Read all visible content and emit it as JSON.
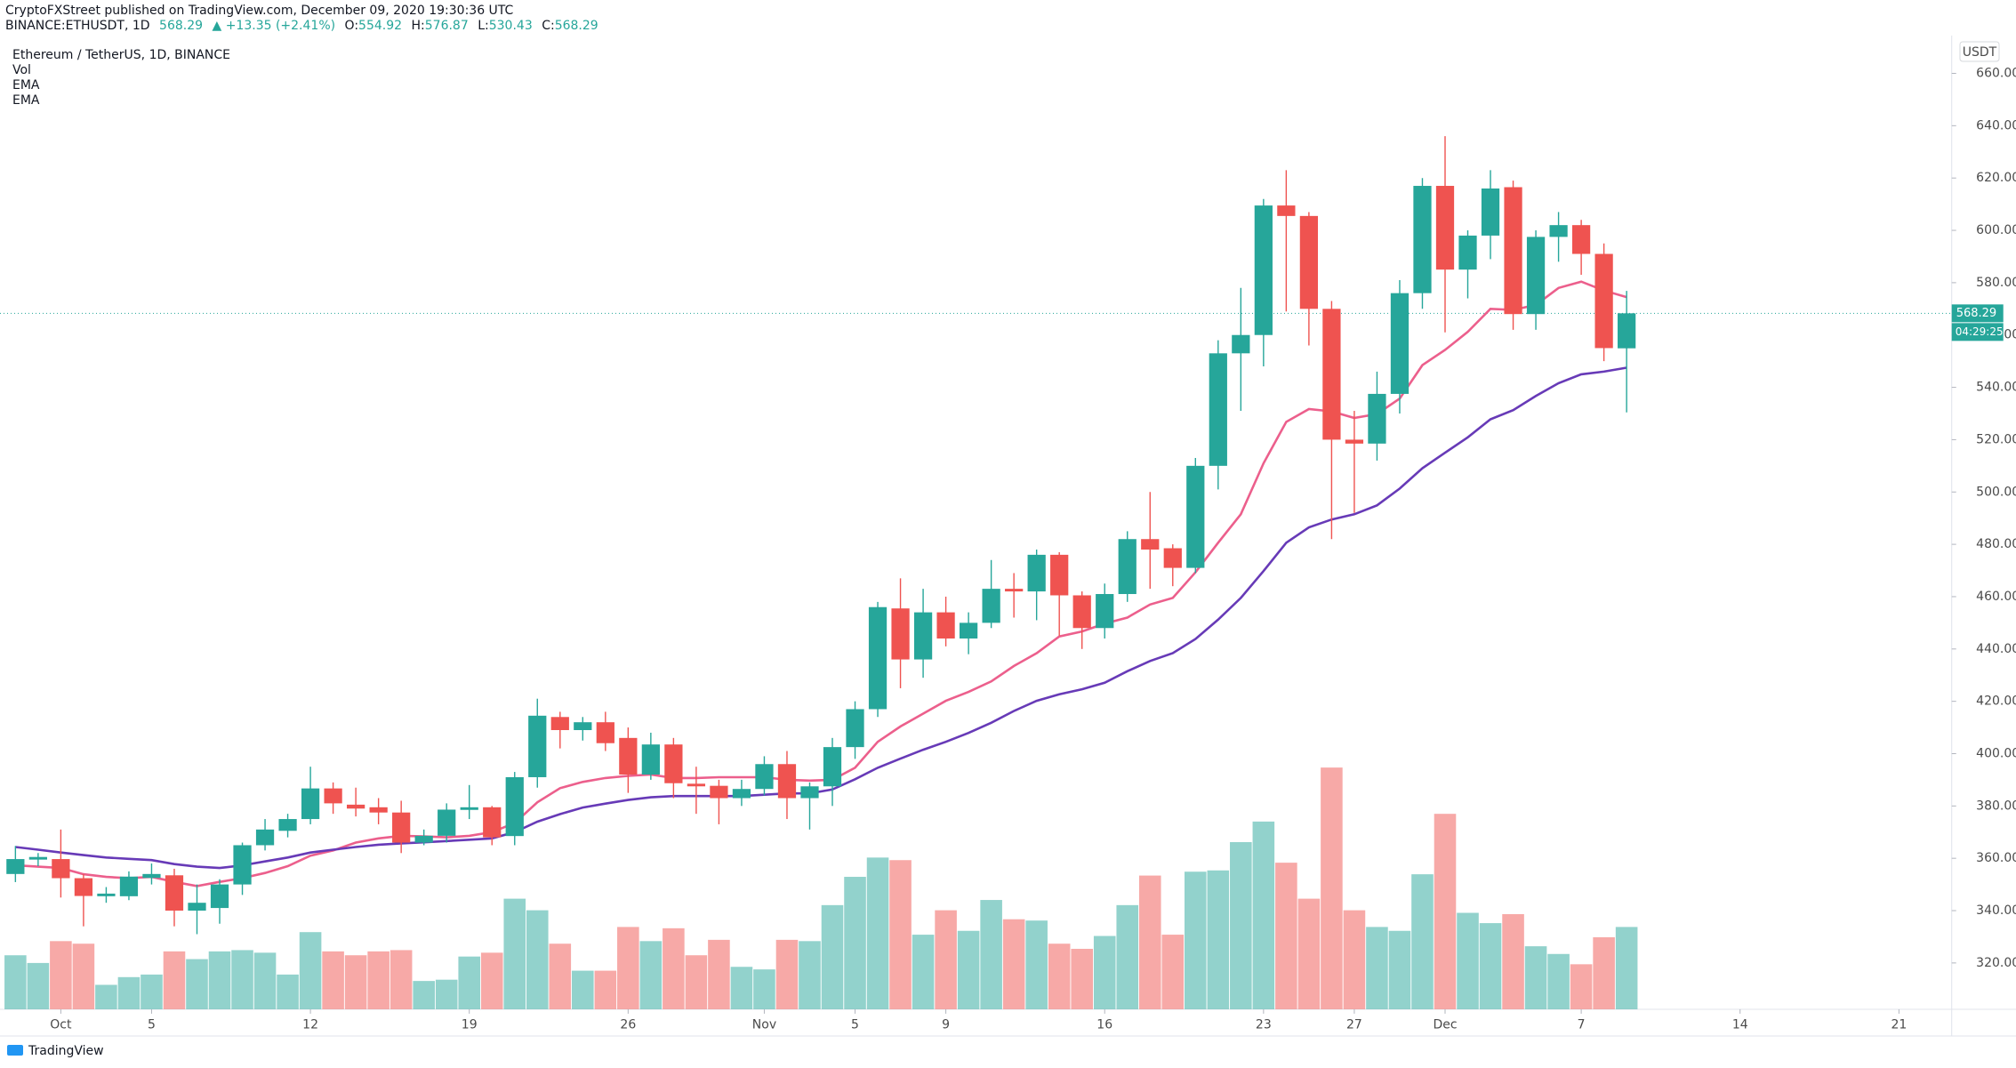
{
  "header": {
    "published": "CryptoFXStreet published on TradingView.com, December 09, 2020 19:30:36 UTC",
    "symbol": "BINANCE:ETHUSDT, 1D",
    "change": "▲ +13.35 (+2.41%)",
    "ohlc_labels": [
      "O:",
      "H:",
      "L:",
      "C:"
    ]
  },
  "chart_data": {
    "type": "candlestick",
    "title": "Ethereum / TetherUS, 1D, BINANCE",
    "volume_name": "Vol",
    "y_unit": "USDT",
    "countdown": "04:29:25",
    "up_color": "#26a69a",
    "down_color": "#ef5350",
    "grid": false,
    "x": [
      "Sep 29",
      "Sep 30",
      "Oct 1",
      "Oct 2",
      "Oct 3",
      "Oct 4",
      "Oct 5",
      "Oct 6",
      "Oct 7",
      "Oct 8",
      "Oct 9",
      "Oct 10",
      "Oct 11",
      "Oct 12",
      "Oct 13",
      "Oct 14",
      "Oct 15",
      "Oct 16",
      "Oct 17",
      "Oct 18",
      "Oct 19",
      "Oct 20",
      "Oct 21",
      "Oct 22",
      "Oct 23",
      "Oct 24",
      "Oct 25",
      "Oct 26",
      "Oct 27",
      "Oct 28",
      "Oct 29",
      "Oct 30",
      "Oct 31",
      "Nov 1",
      "Nov 2",
      "Nov 3",
      "Nov 4",
      "Nov 5",
      "Nov 6",
      "Nov 7",
      "Nov 8",
      "Nov 9",
      "Nov 10",
      "Nov 11",
      "Nov 12",
      "Nov 13",
      "Nov 14",
      "Nov 15",
      "Nov 16",
      "Nov 17",
      "Nov 18",
      "Nov 19",
      "Nov 20",
      "Nov 21",
      "Nov 22",
      "Nov 23",
      "Nov 24",
      "Nov 25",
      "Nov 26",
      "Nov 27",
      "Nov 28",
      "Nov 29",
      "Nov 30",
      "Dec 1",
      "Dec 2",
      "Dec 3",
      "Dec 4",
      "Dec 5",
      "Dec 6",
      "Dec 7",
      "Dec 8",
      "Dec 9"
    ],
    "open": [
      354,
      359.5,
      359.7,
      352.4,
      345.5,
      345.5,
      352.5,
      353.5,
      340,
      341,
      350,
      365,
      370.5,
      375,
      386.7,
      380.5,
      379.5,
      377.5,
      366,
      368.6,
      378.5,
      379.5,
      368.5,
      391,
      414,
      409,
      412,
      406,
      392,
      403.5,
      388.5,
      387.7,
      383,
      386.5,
      396,
      383,
      387.5,
      402.5,
      417,
      455.5,
      436,
      454,
      444,
      450,
      463,
      462,
      476,
      460.5,
      448,
      461,
      482,
      478.5,
      471,
      510,
      553,
      560,
      609.5,
      605.5,
      570,
      520,
      518.5,
      537.5,
      576,
      617,
      585,
      598,
      616.5,
      568,
      597.5,
      602,
      591,
      554.92
    ],
    "high": [
      364.7,
      362,
      371,
      354,
      349,
      355,
      358,
      356,
      350,
      352,
      366,
      375,
      377,
      395,
      389,
      387,
      383,
      382,
      371,
      381,
      388,
      380,
      393,
      421,
      416,
      414,
      416,
      410,
      408,
      406,
      395,
      390,
      390,
      399,
      401,
      389,
      406,
      420,
      458,
      467,
      463,
      460,
      454,
      474,
      469,
      478,
      477,
      462,
      465,
      485,
      500,
      480,
      513,
      558,
      578,
      612,
      623,
      607,
      573,
      531,
      546,
      581,
      620,
      636,
      600,
      623,
      619,
      600,
      607,
      604,
      595,
      576.87
    ],
    "low": [
      350.9,
      357,
      345,
      334,
      343,
      344,
      350,
      334,
      331,
      335,
      346,
      363,
      368,
      373,
      377,
      376,
      373,
      362,
      365,
      366,
      375,
      365,
      365,
      387,
      402,
      405,
      401,
      385,
      390,
      383,
      377,
      373,
      380,
      384,
      375,
      371,
      380,
      398,
      414,
      425,
      429,
      441,
      438,
      448,
      452,
      451,
      445,
      440,
      444,
      458,
      463,
      464,
      469,
      501,
      531,
      548,
      569,
      556,
      482,
      492,
      512,
      530,
      570,
      561,
      574,
      589,
      562,
      562,
      588,
      583,
      550,
      530.43
    ],
    "close": [
      359.7,
      360.5,
      352.4,
      345.6,
      346.5,
      353,
      354,
      340,
      343,
      350,
      365,
      371,
      375,
      386.7,
      381,
      379,
      377.5,
      366,
      368.6,
      378.6,
      379.5,
      368,
      391,
      414.5,
      409,
      412,
      404,
      392,
      403.5,
      388.7,
      387.5,
      383,
      386.5,
      396,
      383,
      387.5,
      402.5,
      417,
      456,
      436,
      454,
      444,
      450,
      463,
      462,
      476,
      460.5,
      448,
      461,
      482,
      478,
      471,
      510,
      553,
      560,
      609.5,
      605.5,
      570,
      520,
      518.5,
      537.5,
      576,
      617,
      585,
      598,
      616,
      568,
      597.5,
      602,
      591,
      555,
      568.29
    ],
    "volume": [
      42,
      36,
      53,
      51,
      19,
      25,
      27,
      45,
      39,
      45,
      46,
      44,
      27,
      60,
      45,
      42,
      45,
      46,
      22,
      23,
      41,
      44,
      86,
      77,
      51,
      30,
      30,
      64,
      53,
      63,
      42,
      54,
      33,
      31,
      54,
      53,
      81,
      103,
      118,
      116,
      58,
      77,
      61,
      85,
      70,
      69,
      51,
      47,
      57,
      81,
      104,
      58,
      107,
      108,
      130,
      146,
      114,
      86,
      188,
      77,
      64,
      61,
      105,
      152,
      75,
      67,
      74,
      49,
      43,
      35,
      56,
      64
    ],
    "series": [
      {
        "name": "EMA",
        "color": "#ec5f8c",
        "values": [
          357.3,
          356.8,
          356.3,
          353.9,
          352.9,
          352.4,
          352.9,
          351,
          349.4,
          351,
          352.4,
          354.4,
          357,
          361,
          363,
          366,
          367.6,
          368.6,
          368.4,
          368,
          368.6,
          370,
          373.5,
          381.4,
          386.8,
          389.2,
          390.7,
          391.5,
          392,
          390.7,
          390.7,
          391,
          391,
          391,
          390,
          389.7,
          390,
          394.6,
          404.5,
          410.4,
          415.3,
          420.2,
          423.6,
          427.6,
          433.5,
          438.4,
          444.8,
          446.7,
          449.7,
          452,
          457,
          459.5,
          469.3,
          480.6,
          491.5,
          511,
          526.8,
          531.7,
          530.8,
          528.3,
          529.8,
          535.7,
          548.5,
          554.3,
          561.2,
          570,
          569.6,
          571.5,
          578,
          580.4,
          577,
          574.5
        ]
      },
      {
        "name": "EMA",
        "color": "#673ab7",
        "values": [
          364.3,
          363.3,
          362.2,
          361.2,
          360.3,
          359.8,
          359.3,
          357.8,
          356.8,
          356.3,
          357.3,
          358.8,
          360.3,
          362.2,
          363.3,
          364.3,
          365.2,
          365.7,
          366.1,
          366.6,
          367.1,
          367.6,
          370,
          374,
          376.9,
          379.4,
          380.9,
          382.3,
          383.3,
          383.8,
          383.8,
          383.8,
          383.8,
          384.3,
          384.8,
          384.8,
          386.3,
          390.2,
          394.6,
          398.1,
          401.5,
          404.5,
          407.9,
          411.8,
          416.3,
          420.2,
          422.7,
          424.6,
          427.1,
          431.5,
          435.4,
          438.4,
          443.8,
          451.2,
          459.5,
          469.8,
          480.6,
          486.5,
          489.5,
          491.5,
          494.9,
          501.3,
          509.1,
          515,
          520.9,
          527.8,
          531.3,
          536.7,
          541.6,
          545,
          546,
          547.5
        ]
      }
    ],
    "ylim": [
      302.3,
      673.3
    ],
    "yticks": [
      {
        "value": 320,
        "label": "320.00"
      },
      {
        "value": 340,
        "label": "340.00"
      },
      {
        "value": 360,
        "label": "360.00"
      },
      {
        "value": 380,
        "label": "380.00"
      },
      {
        "value": 400,
        "label": "400.00"
      },
      {
        "value": 420,
        "label": "420.00"
      },
      {
        "value": 440,
        "label": "440.00"
      },
      {
        "value": 460,
        "label": "460.00"
      },
      {
        "value": 480,
        "label": "480.00"
      },
      {
        "value": 500,
        "label": "500.00"
      },
      {
        "value": 520,
        "label": "520.00"
      },
      {
        "value": 540,
        "label": "540.00"
      },
      {
        "value": 560,
        "label": "560.00"
      },
      {
        "value": 580,
        "label": "580.00"
      },
      {
        "value": 600,
        "label": "600.00"
      },
      {
        "value": 620,
        "label": "620.00"
      },
      {
        "value": 640,
        "label": "640.00"
      },
      {
        "value": 660,
        "label": "660.00"
      }
    ],
    "xticks": [
      {
        "value": "Oct 1",
        "label": "Oct"
      },
      {
        "value": "Oct 5",
        "label": "5"
      },
      {
        "value": "Oct 12",
        "label": "12"
      },
      {
        "value": "Oct 19",
        "label": "19"
      },
      {
        "value": "Oct 26",
        "label": "26"
      },
      {
        "value": "Nov 1",
        "label": "Nov"
      },
      {
        "value": "Nov 5",
        "label": "5"
      },
      {
        "value": "Nov 9",
        "label": "9"
      },
      {
        "value": "Nov 16",
        "label": "16"
      },
      {
        "value": "Nov 23",
        "label": "23"
      },
      {
        "value": "Nov 27",
        "label": "27"
      },
      {
        "value": "Dec 1",
        "label": "Dec"
      },
      {
        "value": "Dec 7",
        "label": "7"
      },
      {
        "value": "Dec 14",
        "label": "14"
      },
      {
        "value": "Dec 21",
        "label": "21"
      }
    ]
  },
  "footer": {
    "brand": "TradingView"
  }
}
